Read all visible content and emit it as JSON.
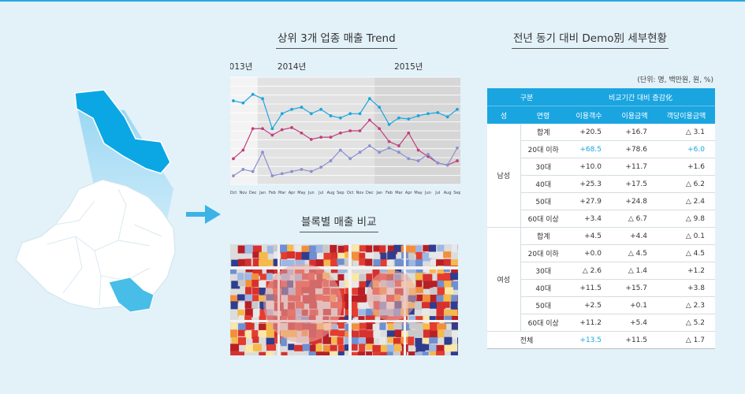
{
  "trend": {
    "title": "상위 3개 업종 매출 Trend",
    "years": [
      "2013년",
      "2014년",
      "2015년"
    ],
    "months": [
      "Oct",
      "Nov",
      "Dec",
      "Jan",
      "Feb",
      "Mar",
      "Apr",
      "May",
      "Jun",
      "Jul",
      "Aug",
      "Sep",
      "Oct",
      "Nov",
      "Dec",
      "Jan",
      "Feb",
      "Mar",
      "Apr",
      "May",
      "Jun",
      "Jul",
      "Aug",
      "Sep"
    ],
    "colors": {
      "cyan": "#1aa5e0",
      "pink": "#c0407c",
      "purple": "#8c8fd0"
    }
  },
  "chart_data": {
    "type": "line",
    "x": [
      "Oct",
      "Nov",
      "Dec",
      "Jan",
      "Feb",
      "Mar",
      "Apr",
      "May",
      "Jun",
      "Jul",
      "Aug",
      "Sep",
      "Oct",
      "Nov",
      "Dec",
      "Jan",
      "Feb",
      "Mar",
      "Apr",
      "May",
      "Jun",
      "Jul",
      "Aug",
      "Sep"
    ],
    "year_labels": [
      "2013년",
      "2014년",
      "2015년"
    ],
    "series": [
      {
        "color": "#1aa5e0",
        "values": [
          78,
          76,
          84,
          80,
          52,
          66,
          70,
          72,
          66,
          70,
          64,
          62,
          66,
          66,
          80,
          72,
          56,
          62,
          61,
          64,
          66,
          67,
          63,
          70
        ]
      },
      {
        "color": "#c0407c",
        "values": [
          24,
          32,
          52,
          52,
          46,
          51,
          53,
          48,
          42,
          44,
          44,
          48,
          50,
          50,
          60,
          52,
          40,
          36,
          48,
          32,
          26,
          20,
          18,
          22
        ]
      },
      {
        "color": "#8c8fd0",
        "values": [
          8,
          14,
          12,
          30,
          8,
          10,
          12,
          14,
          12,
          16,
          22,
          32,
          24,
          30,
          36,
          30,
          34,
          30,
          24,
          22,
          28,
          20,
          18,
          34
        ]
      }
    ],
    "ylim": [
      0,
      100
    ],
    "grid": true,
    "shaded_periods": [
      "2014년",
      "2015년"
    ]
  },
  "block": {
    "title": "블록별 매출 비교"
  },
  "table": {
    "title": "전년 동기 대비 Demo別 세부현황",
    "unit": "(단위: 명, 백만원, 원, %)",
    "head1": {
      "category": "구분",
      "group": "비교기간 대비 증감化"
    },
    "head2": {
      "gender": "성",
      "age": "연령",
      "c1": "이용객수",
      "c2": "이용금액",
      "c3": "객당이용금액"
    },
    "male_label": "남성",
    "female_label": "여성",
    "male": [
      {
        "age": "합계",
        "c1": "+20.5",
        "c2": "+16.7",
        "c3": "△ 3.1"
      },
      {
        "age": "20대 이하",
        "c1": "+68.5",
        "c2": "+78.6",
        "c3": "+6.0"
      },
      {
        "age": "30대",
        "c1": "+10.0",
        "c2": "+11.7",
        "c3": "+1.6"
      },
      {
        "age": "40대",
        "c1": "+25.3",
        "c2": "+17.5",
        "c3": "△ 6.2"
      },
      {
        "age": "50대",
        "c1": "+27.9",
        "c2": "+24.8",
        "c3": "△ 2.4"
      },
      {
        "age": "60대 이상",
        "c1": "+3.4",
        "c2": "△ 6.7",
        "c3": "△ 9.8"
      }
    ],
    "female": [
      {
        "age": "합계",
        "c1": "+4.5",
        "c2": "+4.4",
        "c3": "△ 0.1"
      },
      {
        "age": "20대 이하",
        "c1": "+0.0",
        "c2": "△ 4.5",
        "c3": "△ 4.5"
      },
      {
        "age": "30대",
        "c1": "△ 2.6",
        "c2": "△ 1.4",
        "c3": "+1.2"
      },
      {
        "age": "40대",
        "c1": "+11.5",
        "c2": "+15.7",
        "c3": "+3.8"
      },
      {
        "age": "50대",
        "c1": "+2.5",
        "c2": "+0.1",
        "c3": "△ 2.3"
      },
      {
        "age": "60대 이상",
        "c1": "+11.2",
        "c2": "+5.4",
        "c3": "△ 5.2"
      }
    ],
    "total": {
      "label": "전체",
      "c1": "+13.5",
      "c2": "+11.5",
      "c3": "△ 1.7"
    }
  }
}
